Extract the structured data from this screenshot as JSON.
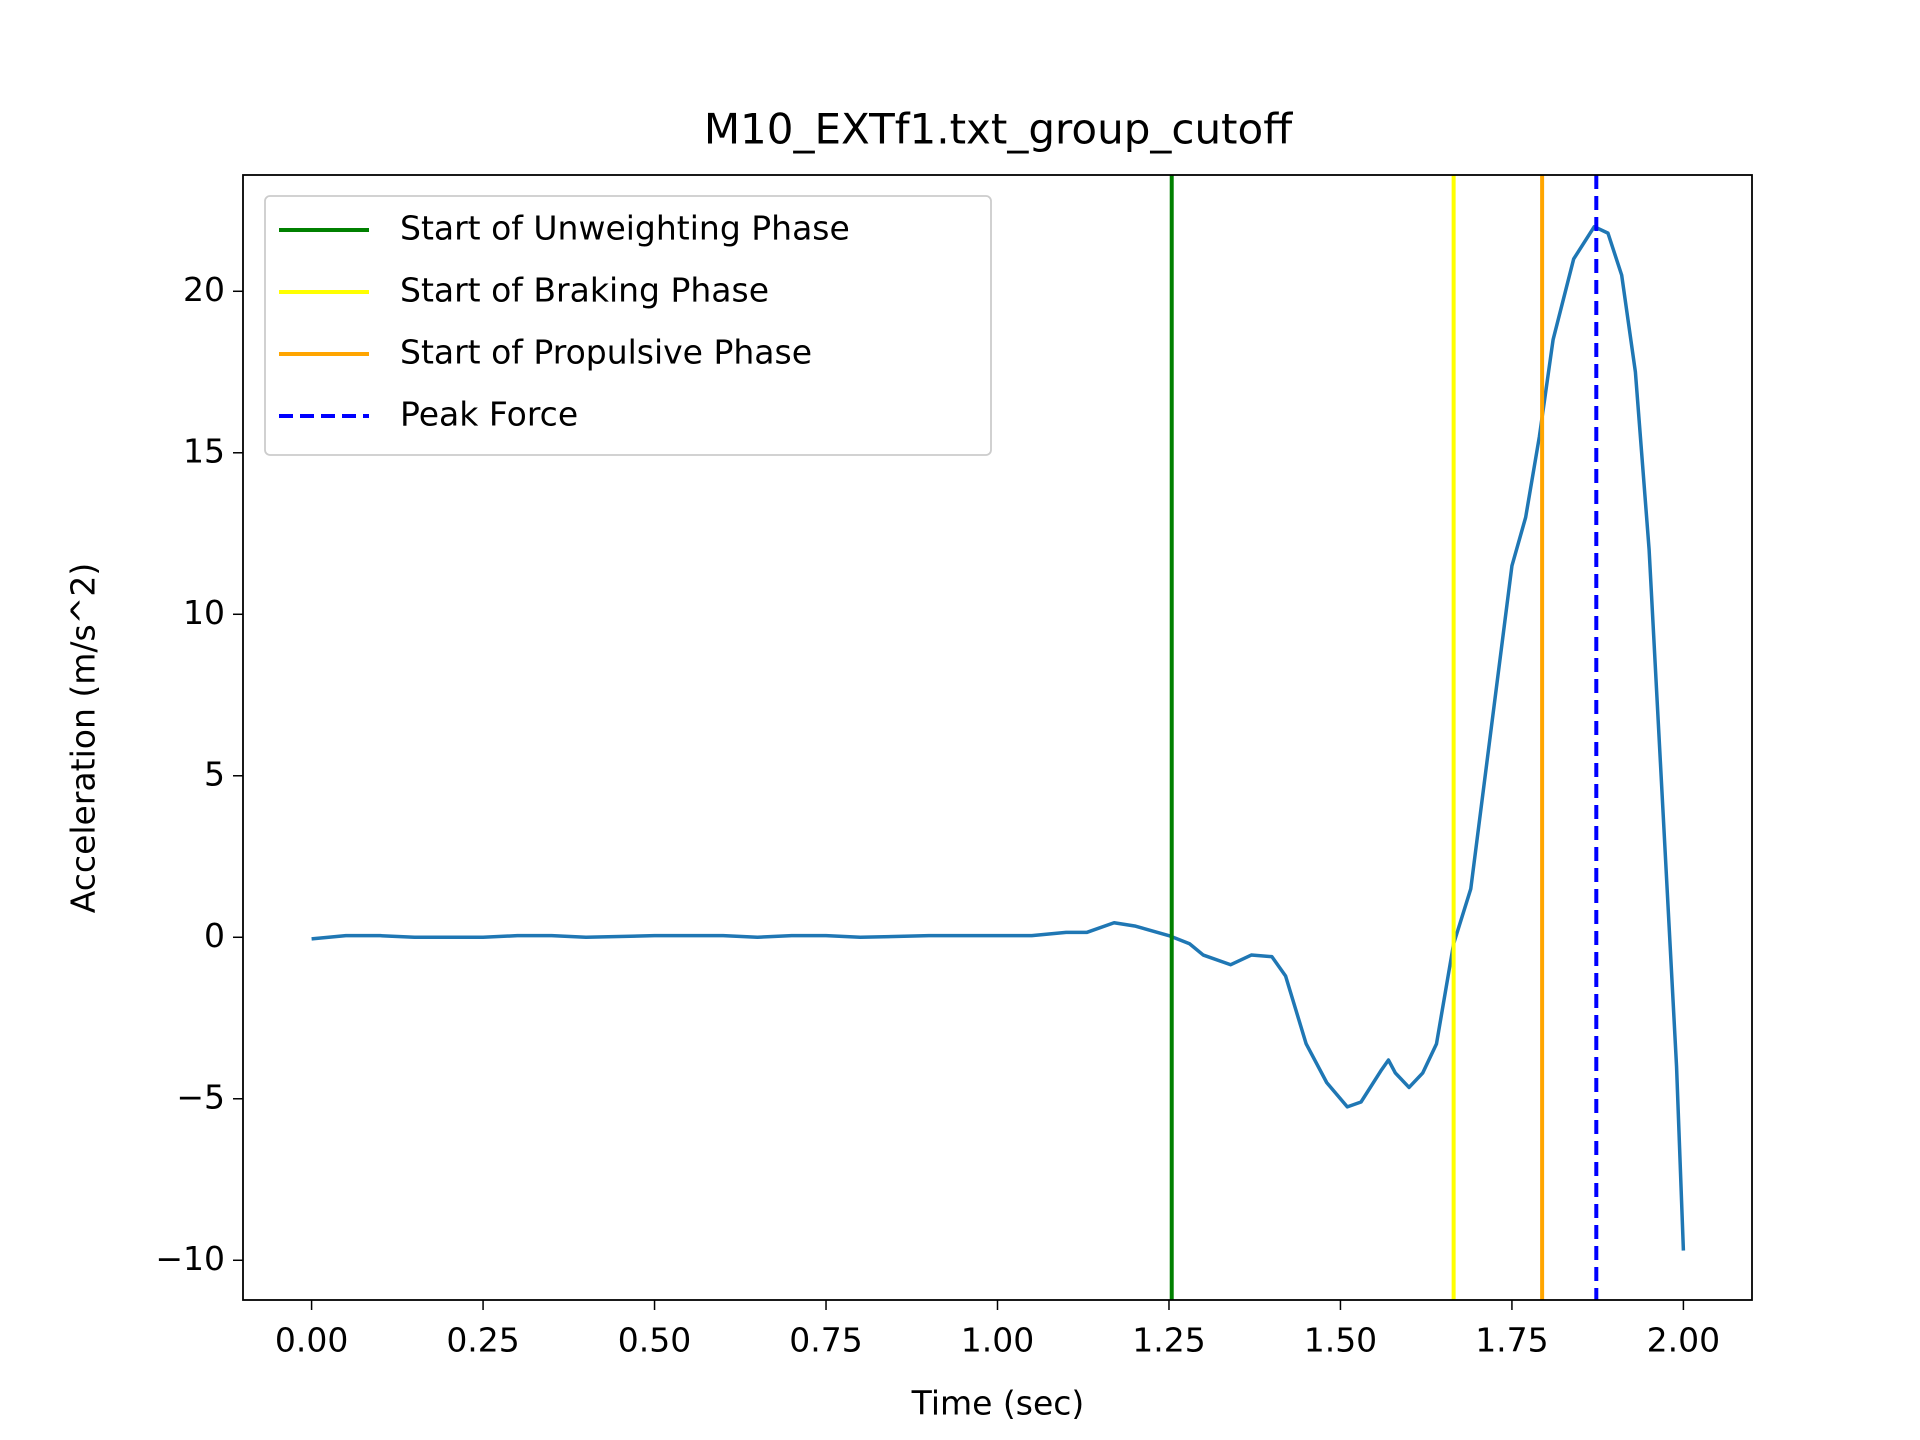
{
  "chart_data": {
    "type": "line",
    "title": "M10_EXTf1.txt_group_cutoff",
    "xlabel": "Time (sec)",
    "ylabel": "Acceleration (m/s^2)",
    "x": [
      0,
      0.05,
      0.1,
      0.15,
      0.2,
      0.25,
      0.3,
      0.35,
      0.4,
      0.5,
      0.6,
      0.65,
      0.7,
      0.75,
      0.8,
      0.9,
      1.0,
      1.05,
      1.1,
      1.13,
      1.17,
      1.2,
      1.25,
      1.28,
      1.3,
      1.34,
      1.37,
      1.4,
      1.42,
      1.45,
      1.48,
      1.51,
      1.53,
      1.56,
      1.57,
      1.58,
      1.6,
      1.62,
      1.64,
      1.665,
      1.69,
      1.72,
      1.75,
      1.77,
      1.79,
      1.81,
      1.84,
      1.87,
      1.89,
      1.91,
      1.93,
      1.95,
      1.97,
      1.99,
      2.0
    ],
    "values": [
      -0.05,
      0.05,
      0.05,
      0.0,
      0.0,
      0.0,
      0.05,
      0.05,
      0.0,
      0.05,
      0.05,
      0.0,
      0.05,
      0.05,
      0.0,
      0.05,
      0.05,
      0.05,
      0.15,
      0.15,
      0.45,
      0.35,
      0.05,
      -0.2,
      -0.55,
      -0.85,
      -0.55,
      -0.6,
      -1.2,
      -3.3,
      -4.5,
      -5.25,
      -5.1,
      -4.1,
      -3.8,
      -4.2,
      -4.65,
      -4.2,
      -3.3,
      -0.2,
      1.5,
      6.5,
      11.5,
      13,
      15.5,
      18.5,
      21,
      22,
      21.8,
      20.5,
      17.5,
      12,
      4,
      -4,
      -9.7
    ],
    "color": "#1f77b4",
    "vlines": [
      {
        "name": "Start of Unweighting Phase",
        "color": "#008000",
        "x": 1.254,
        "dashed": false
      },
      {
        "name": "Start of Braking Phase",
        "color": "#ffff00",
        "x": 1.665,
        "dashed": false
      },
      {
        "name": "Start of Propulsive Phase",
        "color": "#ffa500",
        "x": 1.794,
        "dashed": false
      },
      {
        "name": "Peak Force",
        "color": "#0000ff",
        "x": 1.873,
        "dashed": true
      }
    ],
    "legend": "upper left",
    "xlim": [
      -0.1,
      2.1
    ],
    "xticks": [
      {
        "value": 0,
        "label": "0.00"
      },
      {
        "value": 0.25,
        "label": "0.25"
      },
      {
        "value": 0.5,
        "label": "0.50"
      },
      {
        "value": 0.75,
        "label": "0.75"
      },
      {
        "value": 1,
        "label": "1.00"
      },
      {
        "value": 1.25,
        "label": "1.25"
      },
      {
        "value": 1.5,
        "label": "1.50"
      },
      {
        "value": 1.75,
        "label": "1.75"
      },
      {
        "value": 2,
        "label": "2.00"
      }
    ],
    "ylim": [
      -11.23,
      23.6
    ],
    "yticks": [
      {
        "value": -10,
        "label": "−10"
      },
      {
        "value": -5,
        "label": "−5"
      },
      0,
      5,
      10,
      15,
      20
    ]
  }
}
